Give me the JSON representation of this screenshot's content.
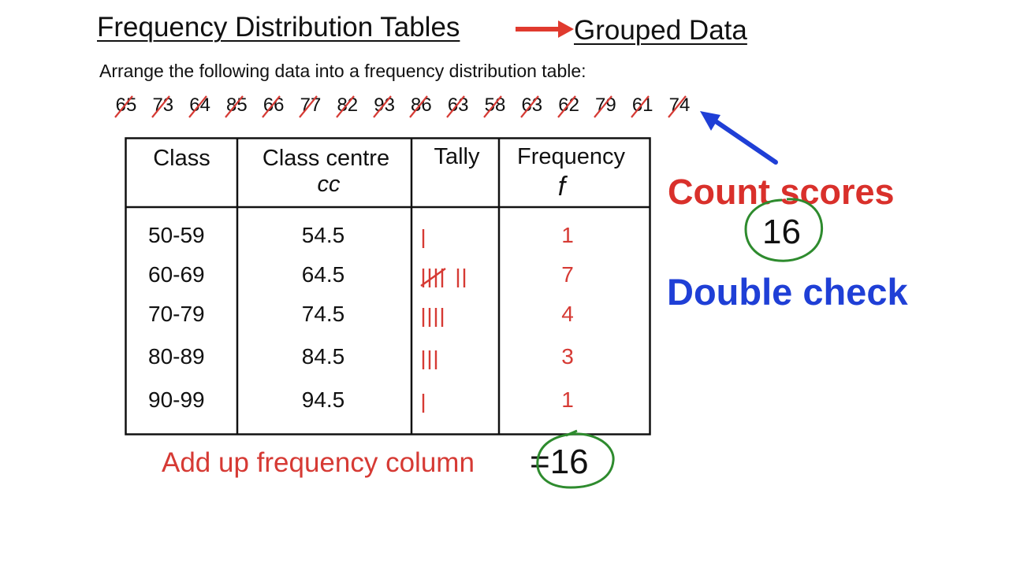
{
  "heading": {
    "left": "Frequency Distribution Tables",
    "right": "Grouped Data"
  },
  "instruction": "Arrange the following data into a frequency distribution table:",
  "data_values": [
    "65",
    "73",
    "64",
    "85",
    "66",
    "77",
    "82",
    "93",
    "86",
    "63",
    "58",
    "63",
    "62",
    "79",
    "61",
    "74"
  ],
  "table": {
    "headers": {
      "class": "Class",
      "centre": "Class centre",
      "centre_sub": "cc",
      "tally": "Tally",
      "frequency": "Frequency",
      "frequency_sub": "f"
    },
    "rows": [
      {
        "class": "50-59",
        "centre": "54.5",
        "tally": 1,
        "frequency": "1"
      },
      {
        "class": "60-69",
        "centre": "64.5",
        "tally": 7,
        "frequency": "7"
      },
      {
        "class": "70-79",
        "centre": "74.5",
        "tally": 4,
        "frequency": "4"
      },
      {
        "class": "80-89",
        "centre": "84.5",
        "tally": 3,
        "frequency": "3"
      },
      {
        "class": "90-99",
        "centre": "94.5",
        "tally": 1,
        "frequency": "1"
      }
    ]
  },
  "annotations": {
    "count_scores": "Count scores",
    "count_value": "16",
    "double_check": "Double check",
    "sum_label": "Add up frequency column",
    "sum_value": "=16"
  },
  "colors": {
    "red": "#d63a34",
    "blue": "#1f3fd6",
    "green": "#2e8b2e",
    "ink": "#111111"
  }
}
